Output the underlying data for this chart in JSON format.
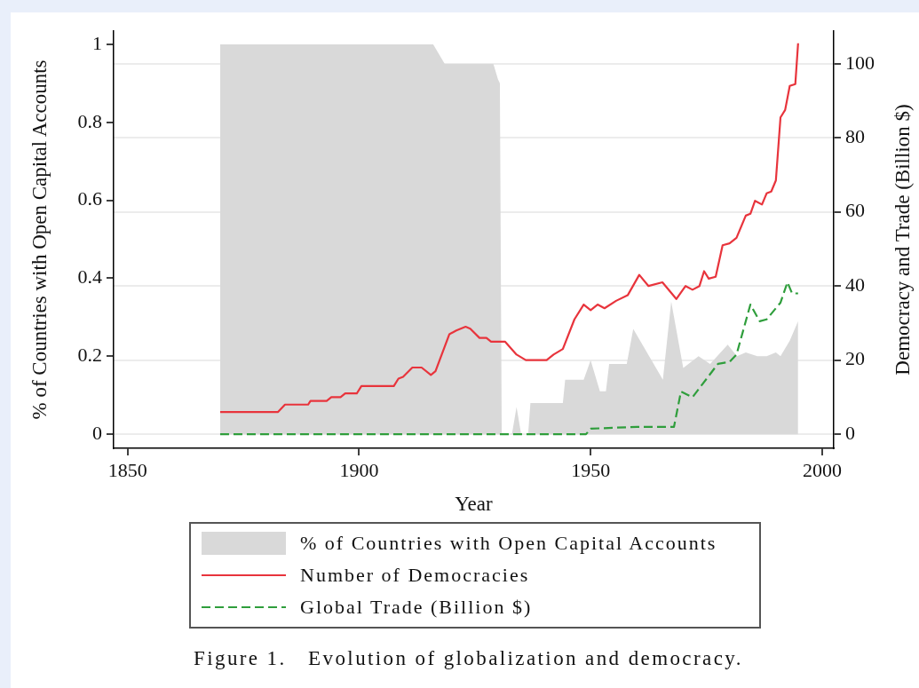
{
  "chart_data": {
    "type": "line",
    "xlabel": "Year",
    "ylabel": "% of Countries with Open Capital Accounts",
    "y2label": "Democracy and Trade (Billion $)",
    "annotations": [
      "Figure 1.   Evolution of globalization and democracy."
    ],
    "xlim": [
      1847,
      2002.5
    ],
    "xticks": [
      1850,
      1900,
      1950,
      2000
    ],
    "ylim": [
      -0.036,
      1.034
    ],
    "yticks": [
      0,
      0.2,
      0.4,
      0.6,
      0.8,
      1
    ],
    "y2lim": [
      -3.8,
      108.8
    ],
    "y2ticks": [
      0,
      20,
      40,
      60,
      80,
      100
    ],
    "grid": "y",
    "legend": "bottom",
    "marker": "none",
    "series": [
      {
        "type": "area",
        "name": "% of Countries with Open Capital Accounts",
        "color": "#d9d9d9",
        "x": [
          1870,
          1916,
          1918.5,
          1929,
          1930,
          1930.4,
          1930.8,
          1933,
          1934,
          1935,
          1936.5,
          1937,
          1944,
          1944.5,
          1948.5,
          1950,
          1952,
          1953.3,
          1954,
          1957.8,
          1959.2,
          1965.6,
          1967.4,
          1970,
          1973.3,
          1975.8,
          1979.6,
          1981.6,
          1983.5,
          1986,
          1988,
          1990,
          1991,
          1993,
          1994.8
        ],
        "values": [
          1,
          1,
          0.95,
          0.95,
          0.91,
          0.9,
          0,
          0,
          0.07,
          0,
          0,
          0.08,
          0.08,
          0.14,
          0.14,
          0.19,
          0.11,
          0.11,
          0.18,
          0.18,
          0.27,
          0.14,
          0.34,
          0.17,
          0.2,
          0.18,
          0.23,
          0.2,
          0.21,
          0.2,
          0.2,
          0.21,
          0.2,
          0.24,
          0.29
        ]
      },
      {
        "name": "Number of Democracies",
        "color": "#e8343c",
        "axis": "y2",
        "x": [
          1870,
          1882.5,
          1884,
          1889,
          1889.5,
          1893,
          1894,
          1896,
          1897,
          1899.5,
          1900.5,
          1907.5,
          1908.5,
          1909.5,
          1911.5,
          1913.5,
          1915.5,
          1916.5,
          1919.5,
          1921,
          1923,
          1924,
          1926,
          1927.5,
          1928.5,
          1931.5,
          1934,
          1936,
          1940.5,
          1942,
          1944,
          1946.5,
          1948.5,
          1950,
          1951.5,
          1953,
          1955.5,
          1958,
          1960.5,
          1962.5,
          1965.5,
          1968.5,
          1970.5,
          1972,
          1973.5,
          1974.5,
          1975.5,
          1977,
          1978.5,
          1980,
          1981.5,
          1983.5,
          1984.5,
          1985.5,
          1987,
          1988,
          1989,
          1990,
          1991,
          1992,
          1993,
          1994.2,
          1994.8
        ],
        "values": [
          6,
          6,
          8,
          8,
          9,
          9,
          10,
          10,
          11,
          11,
          13,
          13,
          15,
          15.5,
          18,
          18,
          16,
          17,
          27,
          28,
          29,
          28.5,
          26,
          26,
          25,
          25,
          21.5,
          20,
          20,
          21.5,
          23,
          31,
          35,
          33.5,
          35,
          34,
          36,
          37.5,
          43,
          40,
          41,
          36.5,
          40,
          39,
          40,
          44,
          42,
          42.5,
          51,
          51.5,
          53,
          59,
          59.5,
          63,
          62,
          65,
          65.5,
          68.5,
          85.5,
          87.5,
          94,
          94.5,
          105.5
        ]
      },
      {
        "name": "Global Trade (Billion $)",
        "color": "#2f9e3c",
        "axis": "y2",
        "line_style": "dashed",
        "x": [
          1870,
          1949,
          1950,
          1960,
          1968,
          1969.5,
          1972,
          1977.5,
          1980,
          1981.5,
          1984.5,
          1986.5,
          1988,
          1991,
          1992.5,
          1993.5,
          1994.8
        ],
        "values": [
          0,
          0,
          1.5,
          2,
          2,
          11.5,
          10,
          19,
          19.5,
          21.5,
          35,
          30.5,
          31,
          35.5,
          41,
          38,
          38
        ]
      }
    ]
  }
}
